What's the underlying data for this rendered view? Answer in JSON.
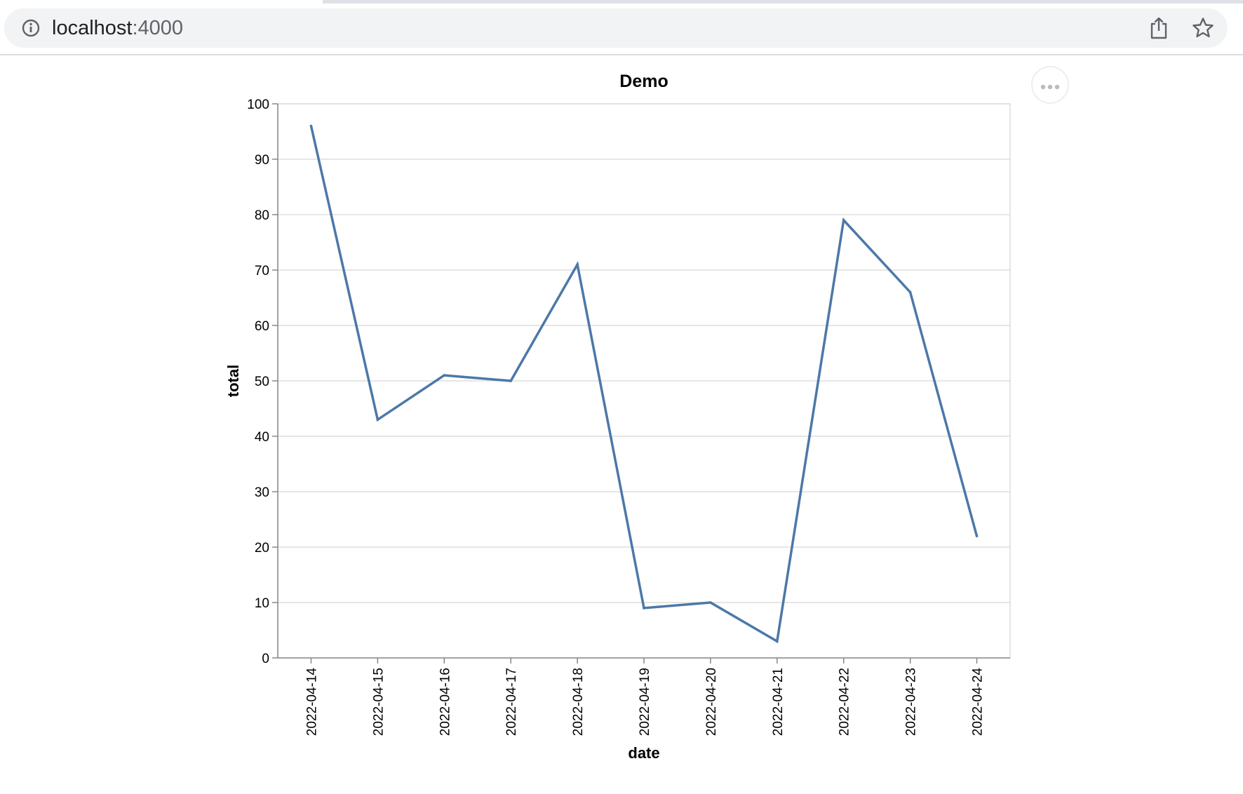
{
  "browser": {
    "url_host": "localhost",
    "url_port": ":4000",
    "icons": [
      "info-icon",
      "share-icon",
      "star-icon"
    ]
  },
  "chart_actions": {
    "icon": "more-horizontal-icon"
  },
  "chart_data": {
    "type": "line",
    "title": "Demo",
    "xlabel": "date",
    "ylabel": "total",
    "x": [
      "2022-04-14",
      "2022-04-15",
      "2022-04-16",
      "2022-04-17",
      "2022-04-18",
      "2022-04-19",
      "2022-04-20",
      "2022-04-21",
      "2022-04-22",
      "2022-04-23",
      "2022-04-24"
    ],
    "series": [
      {
        "values": [
          96,
          43,
          51,
          50,
          71,
          9,
          10,
          3,
          79,
          66,
          22
        ],
        "color": "#4c78a8"
      }
    ],
    "ylim": [
      0,
      100
    ],
    "yticks": [
      0,
      10,
      20,
      30,
      40,
      50,
      60,
      70,
      80,
      90,
      100
    ],
    "grid": true
  }
}
